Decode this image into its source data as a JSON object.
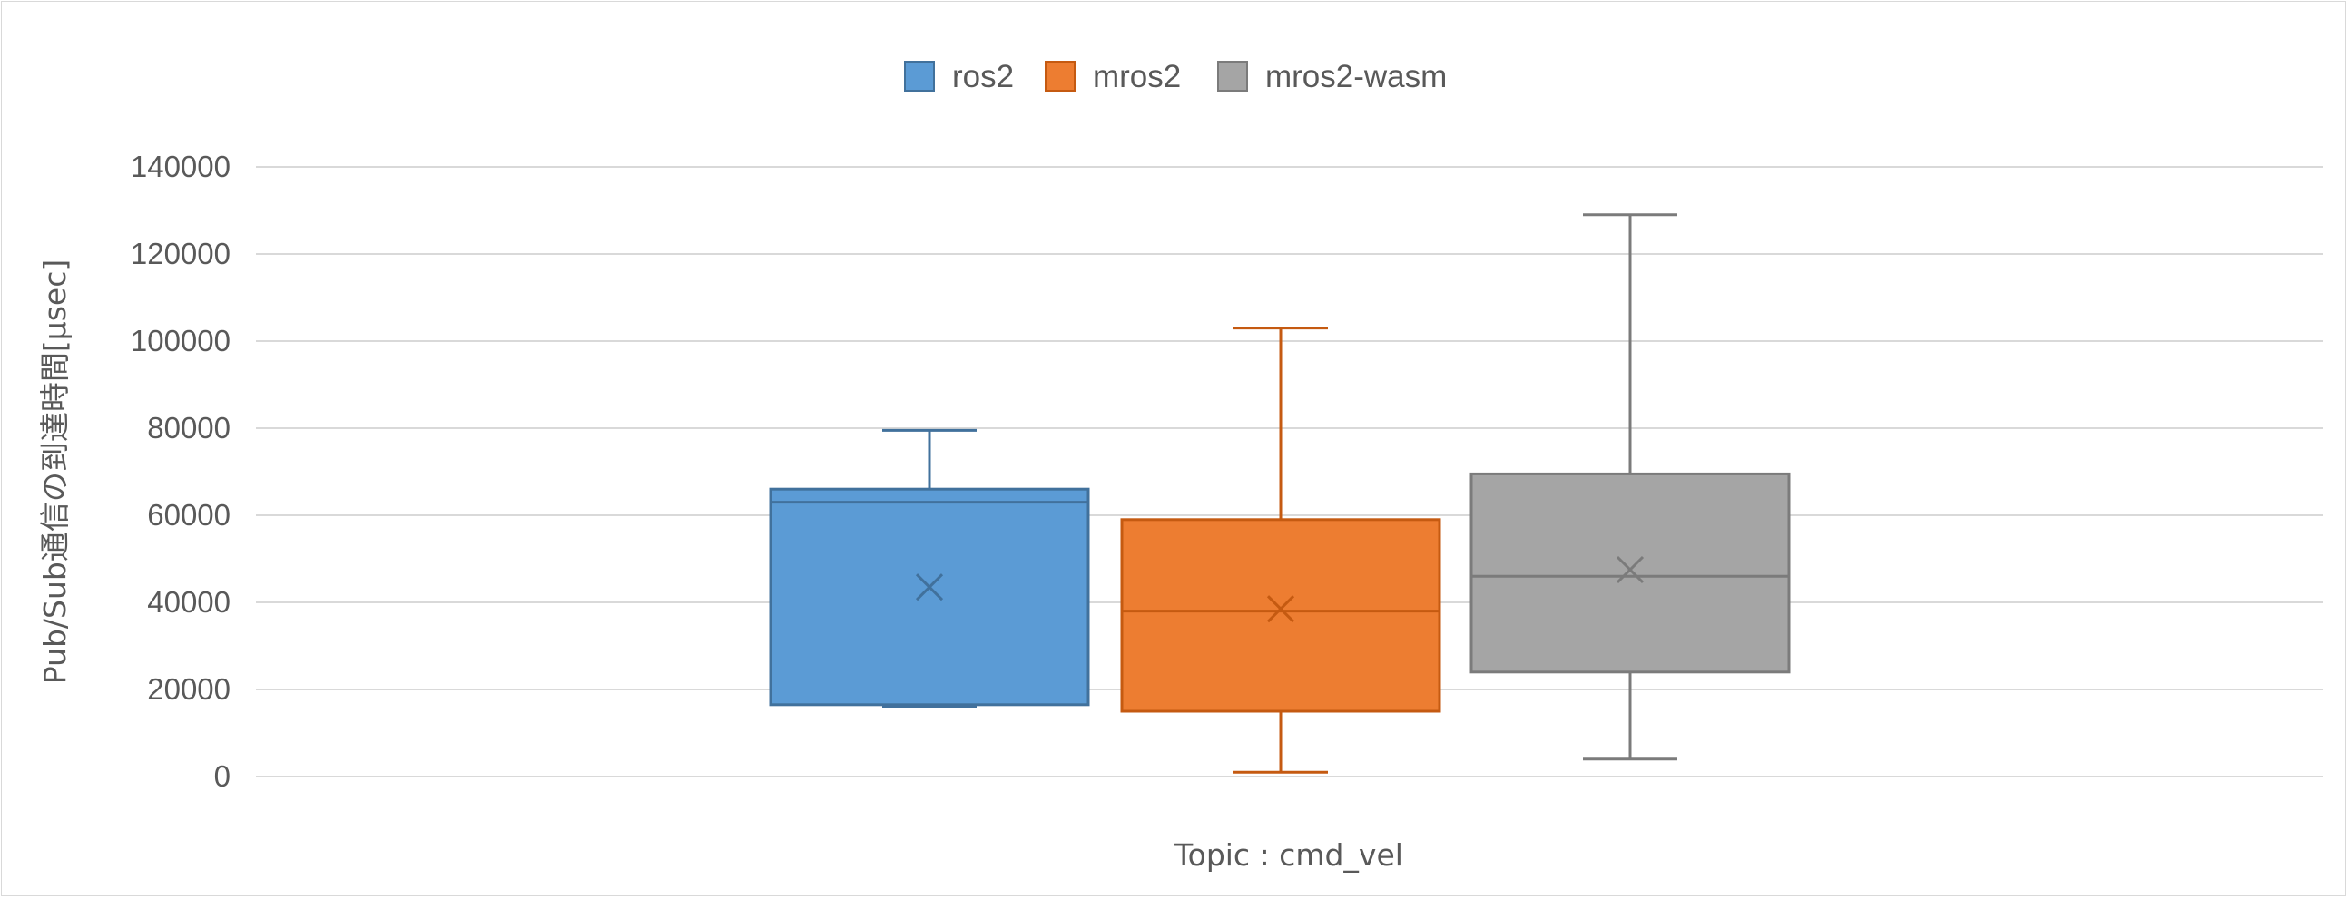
{
  "chart_data": {
    "type": "box",
    "title": "",
    "xlabel": "Topic : cmd_vel",
    "ylabel": "Pub/Sub通信の到達時間[µsec]",
    "ylim": [
      0,
      140000
    ],
    "yticks": [
      0,
      20000,
      40000,
      60000,
      80000,
      100000,
      120000,
      140000
    ],
    "grid": true,
    "legend_position": "top",
    "categories": [
      "cmd_vel"
    ],
    "series": [
      {
        "name": "ros2",
        "fill": "#5b9bd5",
        "stroke": "#41719c",
        "min": 16000,
        "q1": 16500,
        "median": 63000,
        "q3": 66000,
        "max": 79500,
        "mean": 43500
      },
      {
        "name": "mros2",
        "fill": "#ed7d31",
        "stroke": "#c55a11",
        "min": 1000,
        "q1": 15000,
        "median": 38000,
        "q3": 59000,
        "max": 103000,
        "mean": 38500
      },
      {
        "name": "mros2-wasm",
        "fill": "#a5a5a5",
        "stroke": "#7b7b7b",
        "min": 4000,
        "q1": 24000,
        "median": 46000,
        "q3": 69500,
        "max": 129000,
        "mean": 47500
      }
    ]
  },
  "colors": {
    "gridline": "#d9d9d9",
    "text": "#595959",
    "border": "#d9d9d9"
  }
}
